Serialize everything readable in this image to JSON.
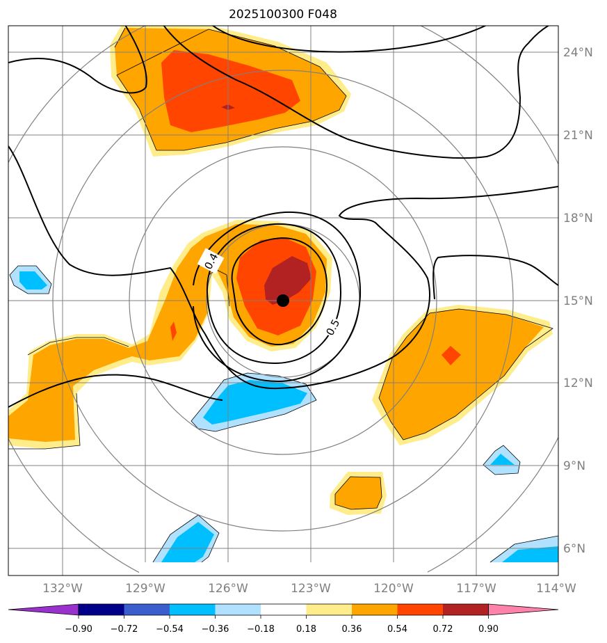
{
  "title": "2025100300 F048",
  "colors": {
    "yellow": "#ffec8b",
    "orange": "#ffa500",
    "red_orange": "#ff4500",
    "dark_red": "#b22222",
    "light_blue": "#b0e2ff",
    "sky_blue": "#00bfff",
    "purple": "#9932cc",
    "navy": "#00008b",
    "royal_blue": "#3a5fcd",
    "pink": "#ff82ab",
    "grid": "#808080",
    "axis_text": "#7f7f7f"
  },
  "lat_labels": [
    "24°N",
    "21°N",
    "18°N",
    "15°N",
    "12°N",
    "9°N",
    "6°N"
  ],
  "lon_labels": [
    "132°W",
    "129°W",
    "126°W",
    "123°W",
    "120°W",
    "117°W",
    "114°W"
  ],
  "contour_labels": [
    "0.4",
    "0.5"
  ],
  "storm_center": {
    "lon": "124°W",
    "lat": "15°N"
  },
  "colorbar": {
    "labels": [
      "−0.90",
      "−0.72",
      "−0.54",
      "−0.36",
      "−0.18",
      "0.18",
      "0.36",
      "0.54",
      "0.72",
      "0.90"
    ],
    "colors": [
      "#9932cc",
      "#00008b",
      "#3a5fcd",
      "#00bfff",
      "#b0e2ff",
      "#ffffff",
      "#ffec8b",
      "#ffa500",
      "#ff4500",
      "#b22222",
      "#ff82ab"
    ]
  }
}
